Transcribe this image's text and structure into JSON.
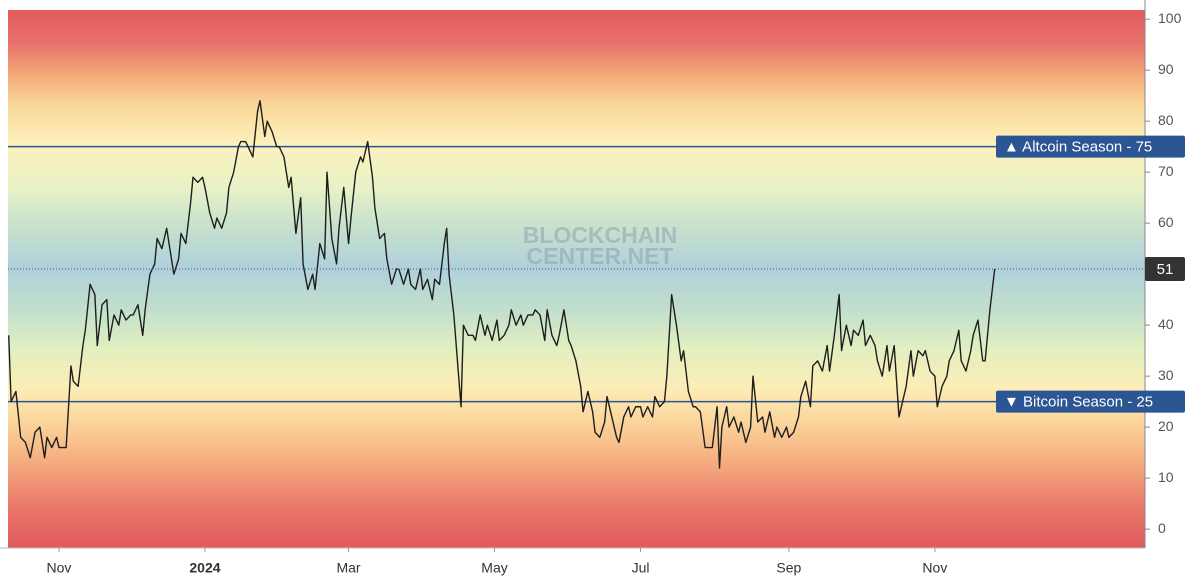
{
  "chart_data": {
    "type": "line",
    "watermark": [
      "BLOCKCHAIN",
      "CENTER.NET"
    ],
    "color": "#1e1e1e",
    "xlim": [
      -21.3,
      453.8
    ],
    "ylim": [
      -3.7,
      101.8
    ],
    "yticks": [
      0,
      10,
      20,
      30,
      40,
      50,
      60,
      70,
      80,
      90,
      100
    ],
    "xticks": [
      {
        "value": 0,
        "label": "Nov"
      },
      {
        "value": 61,
        "label": "2024"
      },
      {
        "value": 121,
        "label": "Mar"
      },
      {
        "value": 182,
        "label": "May"
      },
      {
        "value": 243,
        "label": "Jul"
      },
      {
        "value": 305,
        "label": "Sep"
      },
      {
        "value": 366,
        "label": "Nov"
      }
    ],
    "thresholds": [
      {
        "label": "▲ Altcoin Season - 75",
        "value": 75,
        "color": "#2c5593"
      },
      {
        "label": "▼ Bitcoin Season - 25",
        "value": 25,
        "color": "#2c5593"
      }
    ],
    "x": [
      -21,
      -20,
      -18,
      -16,
      -14,
      -12,
      -10,
      -8,
      -6,
      -5,
      -3,
      -1,
      0,
      3,
      5,
      6,
      8,
      10,
      11,
      13,
      15,
      16,
      18,
      20,
      21,
      23,
      25,
      26,
      28,
      30,
      31,
      33,
      35,
      36,
      38,
      40,
      41,
      43,
      45,
      46,
      48,
      50,
      51,
      53,
      55,
      56,
      58,
      60,
      61,
      63,
      65,
      66,
      68,
      70,
      71,
      73,
      75,
      76,
      78,
      80,
      81,
      83,
      84,
      86,
      87,
      89,
      91,
      92,
      94,
      96,
      97,
      99,
      101,
      102,
      104,
      106,
      107,
      109,
      111,
      112,
      114,
      116,
      117,
      119,
      121,
      122,
      124,
      126,
      127,
      129,
      131,
      132,
      134,
      136,
      137,
      139,
      141,
      142,
      144,
      146,
      147,
      149,
      151,
      152,
      154,
      156,
      157,
      159,
      161,
      162,
      163,
      165,
      167,
      168,
      169,
      171,
      173,
      174,
      176,
      178,
      179,
      181,
      183,
      184,
      186,
      188,
      189,
      191,
      193,
      194,
      196,
      198,
      199,
      201,
      203,
      204,
      206,
      208,
      209,
      211,
      213,
      214,
      216,
      218,
      219,
      221,
      223,
      224,
      226,
      228,
      229,
      231,
      233,
      234,
      236,
      238,
      239,
      241,
      243,
      244,
      246,
      248,
      249,
      251,
      253,
      254,
      256,
      258,
      260,
      261,
      263,
      265,
      266,
      268,
      270,
      271,
      273,
      275,
      276,
      277,
      279,
      280,
      282,
      284,
      285,
      287,
      289,
      290,
      292,
      294,
      295,
      297,
      299,
      300,
      302,
      304,
      305,
      307,
      309,
      310,
      312,
      314,
      315,
      317,
      319,
      321,
      322,
      324,
      326,
      327,
      329,
      331,
      332,
      334,
      336,
      337,
      339,
      341,
      342,
      344,
      346,
      347,
      349,
      351,
      352,
      354,
      356,
      357,
      359,
      361,
      362,
      364,
      366,
      367,
      369,
      371,
      372,
      374,
      376,
      377,
      379,
      381,
      382,
      384,
      386,
      387,
      389,
      391
    ],
    "values": [
      38,
      25,
      27,
      18,
      17,
      14,
      19,
      20,
      14,
      18,
      16,
      18,
      16,
      16,
      32,
      29,
      28,
      36,
      39,
      48,
      46,
      36,
      44,
      45,
      37,
      42,
      40,
      43,
      41,
      42,
      42,
      44,
      38,
      43,
      50,
      52,
      57,
      55,
      59,
      56,
      50,
      53,
      58,
      56,
      64,
      69,
      68,
      69,
      67,
      62,
      59,
      61,
      59,
      62,
      67,
      70,
      75,
      76,
      76,
      74,
      73,
      82,
      84,
      77,
      80,
      78,
      75,
      75,
      73,
      67,
      69,
      58,
      65,
      52,
      47,
      50,
      47,
      56,
      53,
      70,
      57,
      52,
      59,
      67,
      56,
      61,
      70,
      73,
      72,
      76,
      69,
      63,
      57,
      58,
      53,
      48,
      51,
      51,
      48,
      51,
      48,
      47,
      51,
      47,
      49,
      45,
      49,
      48,
      56,
      59,
      50,
      42,
      30,
      24,
      40,
      38,
      38,
      37,
      42,
      38,
      40,
      37,
      41,
      37,
      38,
      40,
      43,
      40,
      42,
      40,
      42,
      42,
      43,
      42,
      37,
      43,
      38,
      36,
      38,
      43,
      37,
      36,
      33,
      28,
      23,
      27,
      23,
      19,
      18,
      21,
      26,
      22,
      18,
      17,
      22,
      24,
      22,
      24,
      24,
      22,
      24,
      22,
      26,
      24,
      25,
      30,
      46,
      40,
      33,
      35,
      27,
      24,
      24,
      23,
      16,
      16,
      16,
      24,
      12,
      20,
      24,
      20,
      22,
      19,
      21,
      17,
      20,
      30,
      21,
      22,
      19,
      23,
      18,
      20,
      18,
      20,
      18,
      19,
      22,
      26,
      29,
      24,
      32,
      33,
      31,
      36,
      31,
      38,
      46,
      35,
      40,
      36,
      39,
      38,
      41,
      36,
      38,
      36,
      33,
      30,
      36,
      31,
      36,
      22,
      24,
      28,
      35,
      30,
      35,
      34,
      35,
      31,
      30,
      24,
      28,
      30,
      33,
      35,
      39,
      33,
      31,
      35,
      38,
      41,
      33,
      33,
      43,
      51
    ]
  }
}
